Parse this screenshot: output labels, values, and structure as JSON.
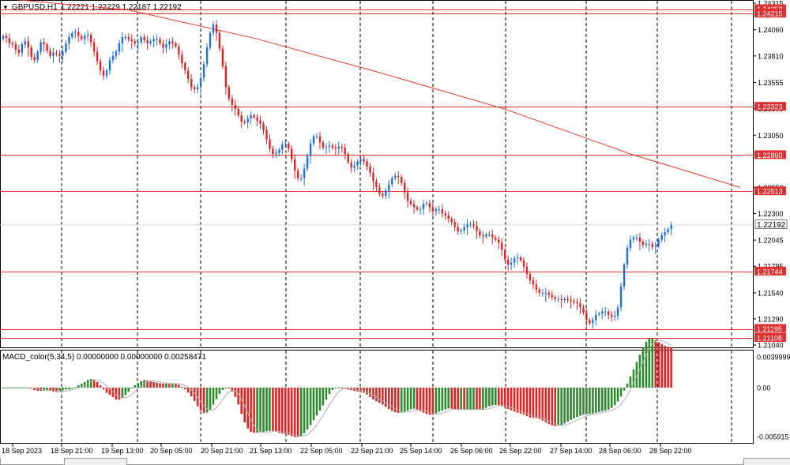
{
  "header": {
    "symbol": "GBPUSD,H1",
    "ohlc": "1.22221 1.22229 1.22187 1.22192"
  },
  "macd": {
    "label": "MACD_color(5,34,5) 0.00000000 0.00000000 0.00258471",
    "axis_labels": [
      "0.0039999",
      "0.00",
      "-0.005915"
    ]
  },
  "price_axis": {
    "labels": [
      "1.24315",
      "1.24060",
      "1.23810",
      "1.23555",
      "1.23305",
      "1.23050",
      "1.22550",
      "1.22300",
      "1.22045",
      "1.21795",
      "1.21540",
      "1.21290",
      "1.21040"
    ],
    "current_price": "1.22192",
    "hline_labels": [
      "1.24258",
      "1.24215",
      "1.23323",
      "1.22860",
      "1.22513",
      "1.21744",
      "1.21195",
      "1.21108"
    ]
  },
  "time_axis": {
    "labels": [
      "18 Sep 2023",
      "18 Sep 21:00",
      "19 Sep 13:00",
      "20 Sep 05:00",
      "20 Sep 21:00",
      "21 Sep 13:00",
      "22 Sep 05:00",
      "22 Sep 21:00",
      "25 Sep 14:00",
      "26 Sep 06:00",
      "26 Sep 22:00",
      "27 Sep 14:00",
      "28 Sep 06:00",
      "28 Sep 22:00"
    ]
  },
  "colors": {
    "bull": "#1f6fe0",
    "bear": "#e02424",
    "hline": "#e03030",
    "ma": "#e83a2a",
    "macd_up": "#2e8b2e",
    "macd_down": "#e02424",
    "signal": "#b0b0b0"
  },
  "chart_data": {
    "type": "candlestick",
    "price_range": [
      1.2104,
      1.24315
    ],
    "horizontal_levels": [
      1.24258,
      1.24215,
      1.23323,
      1.2286,
      1.22513,
      1.21744,
      1.21195,
      1.21108
    ],
    "current_price": 1.22192,
    "moving_average": [
      [
        0,
        1.2436
      ],
      [
        40,
        1.2425
      ],
      [
        80,
        1.2398
      ],
      [
        120,
        1.2365
      ],
      [
        160,
        1.233
      ],
      [
        200,
        1.2287
      ],
      [
        235,
        1.2255
      ]
    ],
    "closes": [
      1.24,
      1.2398,
      1.2393,
      1.2392,
      1.2387,
      1.2384,
      1.2392,
      1.2395,
      1.2389,
      1.238,
      1.2377,
      1.2385,
      1.2394,
      1.2392,
      1.2386,
      1.2381,
      1.2384,
      1.2383,
      1.2381,
      1.2385,
      1.2393,
      1.2399,
      1.2403,
      1.2404,
      1.24,
      1.2397,
      1.24,
      1.2401,
      1.2394,
      1.2385,
      1.2376,
      1.2367,
      1.2362,
      1.2367,
      1.2377,
      1.2381,
      1.2385,
      1.2393,
      1.2399,
      1.2399,
      1.2397,
      1.2395,
      1.2393,
      1.2394,
      1.2399,
      1.2396,
      1.2393,
      1.2395,
      1.2397,
      1.2397,
      1.2393,
      1.2389,
      1.2392,
      1.2395,
      1.2393,
      1.239,
      1.2382,
      1.2374,
      1.2367,
      1.2359,
      1.2351,
      1.2349,
      1.2351,
      1.236,
      1.2373,
      1.2389,
      1.2403,
      1.2411,
      1.2403,
      1.2388,
      1.2371,
      1.2351,
      1.234,
      1.2334,
      1.233,
      1.2324,
      1.2318,
      1.2317,
      1.2321,
      1.2324,
      1.2322,
      1.2319,
      1.2316,
      1.231,
      1.2301,
      1.2292,
      1.2287,
      1.2288,
      1.2291,
      1.2296,
      1.2297,
      1.2292,
      1.2282,
      1.2271,
      1.2264,
      1.2264,
      1.2273,
      1.2285,
      1.2297,
      1.2304,
      1.2304,
      1.2298,
      1.2293,
      1.2294,
      1.2295,
      1.2293,
      1.2292,
      1.2294,
      1.2293,
      1.2287,
      1.2279,
      1.2274,
      1.2276,
      1.228,
      1.2282,
      1.228,
      1.2275,
      1.2269,
      1.2261,
      1.2255,
      1.2249,
      1.2247,
      1.2252,
      1.2258,
      1.2264,
      1.2266,
      1.2265,
      1.2259,
      1.225,
      1.2242,
      1.2239,
      1.2236,
      1.2234,
      1.2234,
      1.2239,
      1.224,
      1.2236,
      1.2232,
      1.2234,
      1.2234,
      1.223,
      1.2228,
      1.2225,
      1.2222,
      1.2217,
      1.2213,
      1.2214,
      1.2217,
      1.222,
      1.222,
      1.2218,
      1.2213,
      1.2209,
      1.2208,
      1.221,
      1.221,
      1.2207,
      1.2205,
      1.2202,
      1.2195,
      1.2186,
      1.2181,
      1.2183,
      1.2187,
      1.2188,
      1.2185,
      1.2179,
      1.2172,
      1.2166,
      1.2162,
      1.2157,
      1.2154,
      1.2154,
      1.2154,
      1.2152,
      1.215,
      1.2148,
      1.2148,
      1.2147,
      1.2148,
      1.2147,
      1.2146,
      1.2145,
      1.2144,
      1.214,
      1.2135,
      1.2128,
      1.2125,
      1.2128,
      1.2133,
      1.2134,
      1.2136,
      1.2136,
      1.2133,
      1.2131,
      1.2132,
      1.214,
      1.216,
      1.2181,
      1.2197,
      1.2205,
      1.2207,
      1.2207,
      1.2203,
      1.22,
      1.2201,
      1.2201,
      1.2198,
      1.2199,
      1.2205,
      1.2209,
      1.2212,
      1.2215,
      1.2219
    ],
    "macd_range": [
      -0.005915,
      0.0039999
    ]
  }
}
